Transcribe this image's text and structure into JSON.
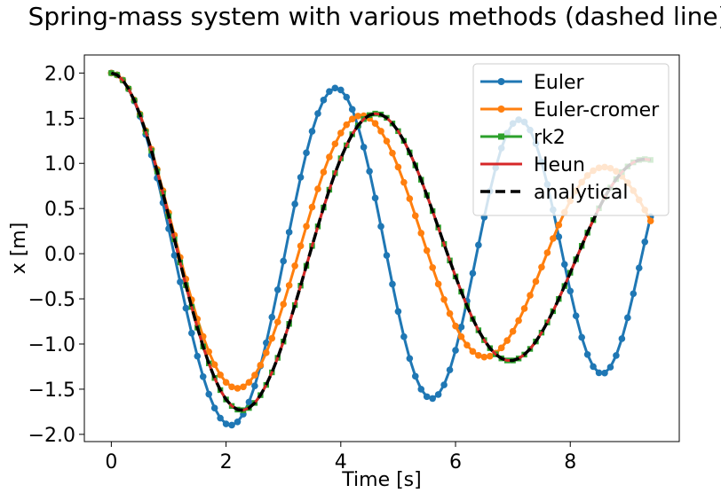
{
  "chart_data": {
    "type": "line",
    "title": "Spring-mass system with various methods (dashed line).",
    "xlabel": "Time [s]",
    "ylabel": "x [m]",
    "xlim": [
      -0.47,
      9.9
    ],
    "ylim": [
      -2.08,
      2.2
    ],
    "xticks": [
      0,
      2,
      4,
      6,
      8
    ],
    "yticks": [
      -2.0,
      -1.5,
      -1.0,
      -0.5,
      0.0,
      0.5,
      1.0,
      1.5,
      2.0
    ],
    "xtick_labels": [
      "0",
      "2",
      "4",
      "6",
      "8"
    ],
    "ytick_labels": [
      "−2.0",
      "−1.5",
      "−1.0",
      "−0.5",
      "0.0",
      "0.5",
      "1.0",
      "1.5",
      "2.0"
    ],
    "legend_position": "top-right",
    "grid": false,
    "x": [
      0.0,
      0.1,
      0.2,
      0.3,
      0.4,
      0.5,
      0.6,
      0.7,
      0.8,
      0.9,
      1.0,
      1.1,
      1.2,
      1.3,
      1.4,
      1.5,
      1.6,
      1.7,
      1.8,
      1.9,
      2.0,
      2.1,
      2.2,
      2.3,
      2.4,
      2.5,
      2.6,
      2.7,
      2.8,
      2.9,
      3.0,
      3.1,
      3.2,
      3.3,
      3.4,
      3.5,
      3.6,
      3.7,
      3.8,
      3.9,
      4.0,
      4.1,
      4.2,
      4.3,
      4.4,
      4.5,
      4.6,
      4.7,
      4.8,
      4.9,
      5.0,
      5.1,
      5.2,
      5.3,
      5.4,
      5.5,
      5.6,
      5.7,
      5.8,
      5.9,
      6.0,
      6.1,
      6.2,
      6.3,
      6.4,
      6.5,
      6.6,
      6.7,
      6.8,
      6.9,
      7.0,
      7.1,
      7.2,
      7.3,
      7.4,
      7.5,
      7.6,
      7.7,
      7.8,
      7.9,
      8.0,
      8.1,
      8.2,
      8.3,
      8.4,
      8.5,
      8.6,
      8.7,
      8.8,
      8.9,
      9.0,
      9.1,
      9.2,
      9.3,
      9.4
    ],
    "series": [
      {
        "name": "Euler",
        "color": "#1f77b4",
        "style": "solid",
        "marker": "circle",
        "values": [
          2.0,
          1.98,
          1.921,
          1.824,
          1.69,
          1.521,
          1.32,
          1.091,
          0.837,
          0.564,
          0.277,
          -0.018,
          -0.313,
          -0.603,
          -0.879,
          -1.134,
          -1.361,
          -1.555,
          -1.709,
          -1.82,
          -1.884,
          -1.898,
          -1.862,
          -1.776,
          -1.642,
          -1.463,
          -1.243,
          -0.987,
          -0.703,
          -0.399,
          -0.082,
          0.238,
          0.55,
          0.846,
          1.117,
          1.355,
          1.552,
          1.701,
          1.796,
          1.834,
          1.813,
          1.733,
          1.598,
          1.411,
          1.18,
          0.912,
          0.616,
          0.302,
          -0.019,
          -0.337,
          -0.64,
          -0.918,
          -1.16,
          -1.357,
          -1.5,
          -1.583,
          -1.603,
          -1.559,
          -1.452,
          -1.287,
          -1.07,
          -0.812,
          -0.524,
          -0.217,
          0.096,
          0.404,
          0.693,
          0.952,
          1.169,
          1.335,
          1.441,
          1.483,
          1.458,
          1.369,
          1.219,
          1.015,
          0.767,
          0.486,
          0.187,
          -0.118,
          -0.414,
          -0.688,
          -0.926,
          -1.116,
          -1.25,
          -1.319,
          -1.321,
          -1.256,
          -1.127,
          -0.941,
          -0.709,
          -0.443,
          -0.158,
          0.131,
          0.409
        ]
      },
      {
        "name": "Euler-cromer",
        "color": "#ff7f0e",
        "style": "solid",
        "marker": "circle",
        "values": [
          2.0,
          1.98,
          1.922,
          1.828,
          1.702,
          1.545,
          1.362,
          1.156,
          0.933,
          0.697,
          0.453,
          0.205,
          -0.041,
          -0.281,
          -0.51,
          -0.723,
          -0.916,
          -1.086,
          -1.228,
          -1.342,
          -1.424,
          -1.474,
          -1.49,
          -1.474,
          -1.424,
          -1.344,
          -1.234,
          -1.097,
          -0.937,
          -0.756,
          -0.559,
          -0.351,
          -0.134,
          0.086,
          0.304,
          0.516,
          0.717,
          0.904,
          1.071,
          1.216,
          1.336,
          1.428,
          1.491,
          1.524,
          1.527,
          1.499,
          1.442,
          1.357,
          1.246,
          1.113,
          0.959,
          0.79,
          0.609,
          0.42,
          0.228,
          0.035,
          -0.154,
          -0.336,
          -0.507,
          -0.663,
          -0.801,
          -0.918,
          -1.012,
          -1.082,
          -1.126,
          -1.144,
          -1.135,
          -1.101,
          -1.043,
          -0.962,
          -0.86,
          -0.741,
          -0.607,
          -0.461,
          -0.307,
          -0.149,
          0.011,
          0.168,
          0.318,
          0.458,
          0.586,
          0.698,
          0.792,
          0.866,
          0.919,
          0.95,
          0.959,
          0.946,
          0.912,
          0.858,
          0.786,
          0.698,
          0.596,
          0.484,
          0.363
        ]
      },
      {
        "name": "rk2",
        "color": "#2ca02c",
        "style": "solid",
        "marker": "square",
        "values": [
          2.0,
          1.98,
          1.921,
          1.826,
          1.697,
          1.537,
          1.35,
          1.14,
          0.911,
          0.668,
          0.416,
          0.159,
          -0.097,
          -0.349,
          -0.59,
          -0.818,
          -1.027,
          -1.214,
          -1.376,
          -1.51,
          -1.614,
          -1.686,
          -1.726,
          -1.733,
          -1.708,
          -1.652,
          -1.566,
          -1.453,
          -1.314,
          -1.153,
          -0.973,
          -0.777,
          -0.569,
          -0.354,
          -0.134,
          0.086,
          0.302,
          0.511,
          0.708,
          0.891,
          1.056,
          1.2,
          1.322,
          1.419,
          1.49,
          1.534,
          1.551,
          1.541,
          1.504,
          1.442,
          1.357,
          1.249,
          1.121,
          0.977,
          0.819,
          0.649,
          0.472,
          0.29,
          0.107,
          -0.075,
          -0.252,
          -0.42,
          -0.578,
          -0.721,
          -0.848,
          -0.957,
          -1.046,
          -1.114,
          -1.159,
          -1.182,
          -1.182,
          -1.16,
          -1.117,
          -1.054,
          -0.972,
          -0.874,
          -0.761,
          -0.636,
          -0.501,
          -0.358,
          -0.211,
          -0.062,
          0.087,
          0.233,
          0.372,
          0.503,
          0.624,
          0.732,
          0.826,
          0.904,
          0.966,
          1.011,
          1.038,
          1.047,
          1.038
        ]
      },
      {
        "name": "Heun",
        "color": "#d62728",
        "style": "solid",
        "marker": "none",
        "values": [
          2.0,
          1.98,
          1.921,
          1.826,
          1.697,
          1.537,
          1.35,
          1.14,
          0.911,
          0.668,
          0.416,
          0.159,
          -0.097,
          -0.349,
          -0.59,
          -0.818,
          -1.027,
          -1.214,
          -1.376,
          -1.51,
          -1.614,
          -1.686,
          -1.726,
          -1.733,
          -1.708,
          -1.652,
          -1.566,
          -1.453,
          -1.314,
          -1.153,
          -0.973,
          -0.777,
          -0.569,
          -0.354,
          -0.134,
          0.086,
          0.302,
          0.511,
          0.708,
          0.891,
          1.056,
          1.2,
          1.322,
          1.419,
          1.49,
          1.534,
          1.551,
          1.541,
          1.504,
          1.442,
          1.357,
          1.249,
          1.121,
          0.977,
          0.819,
          0.649,
          0.472,
          0.29,
          0.107,
          -0.075,
          -0.252,
          -0.42,
          -0.578,
          -0.721,
          -0.848,
          -0.957,
          -1.046,
          -1.114,
          -1.159,
          -1.182,
          -1.182,
          -1.16,
          -1.117,
          -1.054,
          -0.972,
          -0.874,
          -0.761,
          -0.636,
          -0.501,
          -0.358,
          -0.211,
          -0.062,
          0.087,
          0.233,
          0.372,
          0.503,
          0.624,
          0.732,
          0.826,
          0.904,
          0.966,
          1.011,
          1.038,
          1.047,
          1.038
        ]
      },
      {
        "name": "analytical",
        "color": "#000000",
        "style": "dashed",
        "marker": "none",
        "values": [
          2.0,
          1.98,
          1.921,
          1.826,
          1.697,
          1.537,
          1.35,
          1.14,
          0.911,
          0.668,
          0.416,
          0.159,
          -0.097,
          -0.349,
          -0.59,
          -0.818,
          -1.027,
          -1.214,
          -1.376,
          -1.51,
          -1.614,
          -1.686,
          -1.726,
          -1.733,
          -1.708,
          -1.652,
          -1.566,
          -1.453,
          -1.314,
          -1.153,
          -0.973,
          -0.777,
          -0.569,
          -0.354,
          -0.134,
          0.086,
          0.302,
          0.511,
          0.708,
          0.891,
          1.056,
          1.2,
          1.322,
          1.419,
          1.49,
          1.534,
          1.551,
          1.541,
          1.504,
          1.442,
          1.357,
          1.249,
          1.121,
          0.977,
          0.819,
          0.649,
          0.472,
          0.29,
          0.107,
          -0.075,
          -0.252,
          -0.42,
          -0.578,
          -0.721,
          -0.848,
          -0.957,
          -1.046,
          -1.114,
          -1.159,
          -1.182,
          -1.182,
          -1.16,
          -1.117,
          -1.054,
          -0.972,
          -0.874,
          -0.761,
          -0.636,
          -0.501,
          -0.358,
          -0.211,
          -0.062,
          0.087,
          0.233,
          0.372,
          0.503,
          0.624,
          0.732,
          0.826,
          0.904,
          0.966,
          1.011,
          1.038,
          1.047,
          1.038
        ]
      }
    ]
  }
}
